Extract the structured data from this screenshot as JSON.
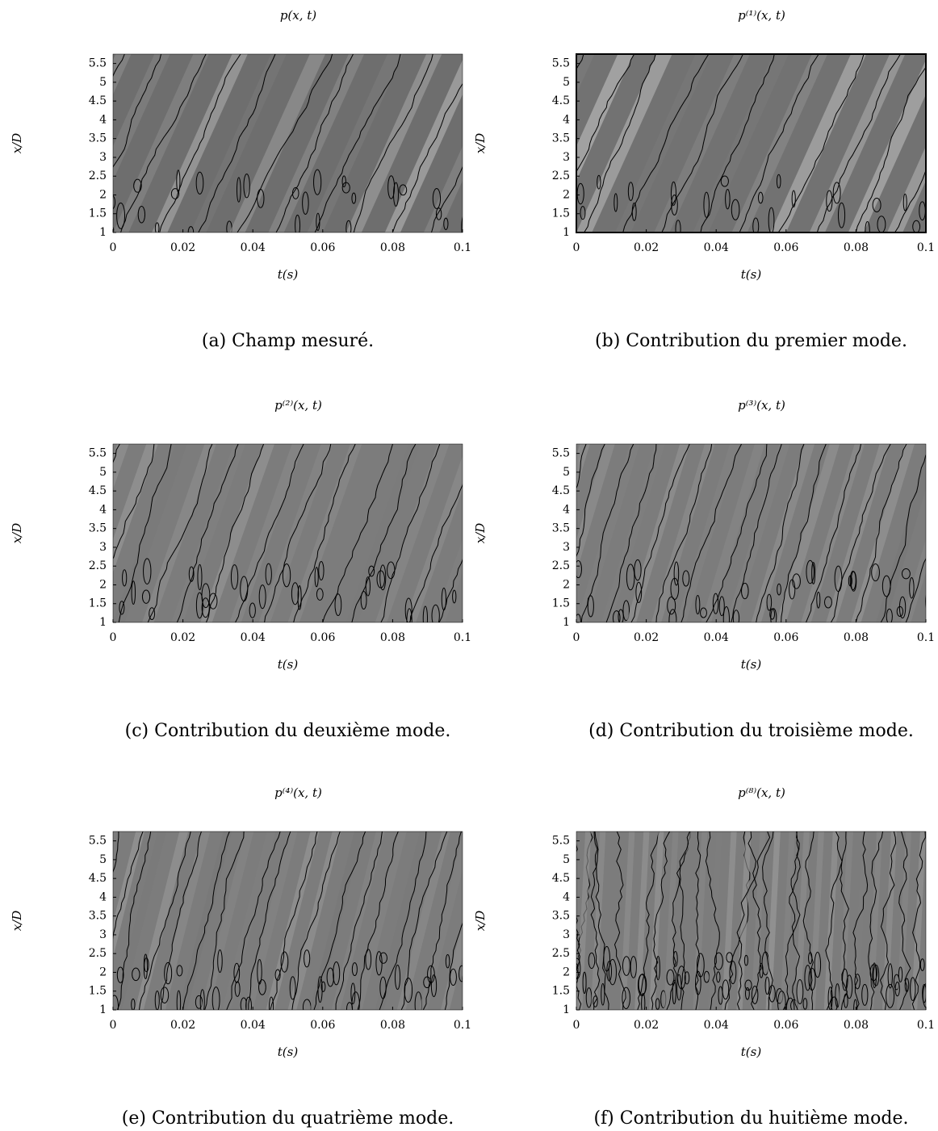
{
  "chart_data": [
    {
      "type": "contour",
      "title": "p(x, t)",
      "xlabel": "t(s)",
      "ylabel": "x/D",
      "caption": "(a) Champ mesuré.",
      "xlim": [
        0,
        0.1
      ],
      "ylim": [
        1,
        5.75
      ],
      "xticks": [
        0,
        0.02,
        0.04,
        0.06,
        0.08,
        0.1
      ],
      "yticks": [
        1,
        1.5,
        2,
        2.5,
        3,
        3.5,
        4,
        4.5,
        5,
        5.5
      ]
    },
    {
      "type": "contour",
      "title": "p⁽¹⁾(x, t)",
      "xlabel": "t(s)",
      "ylabel": "x/D",
      "caption": "(b) Contribution du premier mode.",
      "xlim": [
        0,
        0.1
      ],
      "ylim": [
        1,
        5.75
      ],
      "xticks": [
        0,
        0.02,
        0.04,
        0.06,
        0.08,
        0.1
      ],
      "yticks": [
        1,
        1.5,
        2,
        2.5,
        3,
        3.5,
        4,
        4.5,
        5,
        5.5
      ]
    },
    {
      "type": "contour",
      "title": "p⁽²⁾(x, t)",
      "xlabel": "t(s)",
      "ylabel": "x/D",
      "caption": "(c) Contribution du deuxième mode.",
      "xlim": [
        0,
        0.1
      ],
      "ylim": [
        1,
        5.75
      ],
      "xticks": [
        0,
        0.02,
        0.04,
        0.06,
        0.08,
        0.1
      ],
      "yticks": [
        1,
        1.5,
        2,
        2.5,
        3,
        3.5,
        4,
        4.5,
        5,
        5.5
      ]
    },
    {
      "type": "contour",
      "title": "p⁽³⁾(x, t)",
      "xlabel": "t(s)",
      "ylabel": "x/D",
      "caption": "(d) Contribution du troisième mode.",
      "xlim": [
        0,
        0.1
      ],
      "ylim": [
        1,
        5.75
      ],
      "xticks": [
        0,
        0.02,
        0.04,
        0.06,
        0.08,
        0.1
      ],
      "yticks": [
        1,
        1.5,
        2,
        2.5,
        3,
        3.5,
        4,
        4.5,
        5,
        5.5
      ]
    },
    {
      "type": "contour",
      "title": "p⁽⁴⁾(x, t)",
      "xlabel": "t(s)",
      "ylabel": "x/D",
      "caption": "(e) Contribution du quatrième mode.",
      "xlim": [
        0,
        0.1
      ],
      "ylim": [
        1,
        5.75
      ],
      "xticks": [
        0,
        0.02,
        0.04,
        0.06,
        0.08,
        0.1
      ],
      "yticks": [
        1,
        1.5,
        2,
        2.5,
        3,
        3.5,
        4,
        4.5,
        5,
        5.5
      ]
    },
    {
      "type": "contour",
      "title": "p⁽⁸⁾(x, t)",
      "xlabel": "t(s)",
      "ylabel": "x/D",
      "caption": "(f) Contribution du huitième mode.",
      "xlim": [
        0,
        0.1
      ],
      "ylim": [
        1,
        5.75
      ],
      "xticks": [
        0,
        0.02,
        0.04,
        0.06,
        0.08,
        0.1
      ],
      "yticks": [
        1,
        1.5,
        2,
        2.5,
        3,
        3.5,
        4,
        4.5,
        5,
        5.5
      ]
    }
  ]
}
